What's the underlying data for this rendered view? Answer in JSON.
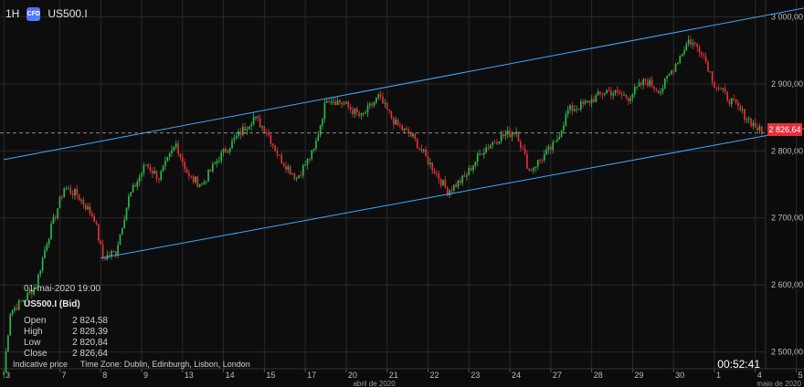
{
  "header": {
    "timeframe": "1H",
    "badge": "CFD",
    "symbol": "US500.I"
  },
  "info_panel": {
    "datetime": "01-mai-2020 19:00",
    "symbol_label": "US500.I (Bid)",
    "rows": [
      {
        "label": "Open",
        "value": "2 824,58"
      },
      {
        "label": "High",
        "value": "2 828,39"
      },
      {
        "label": "Low",
        "value": "2 820,84"
      },
      {
        "label": "Close",
        "value": "2 826,64"
      }
    ]
  },
  "footer": {
    "note": "Indicative price",
    "timezone": "Time Zone: Dublin, Edinburgh, Lisbon, London"
  },
  "countdown": "00:52:41",
  "current_price_label": "2 826,64",
  "colors": {
    "up": "#2db84d",
    "down": "#e5303b",
    "channel": "#3fa9ff",
    "grid": "#2a2a2a",
    "price_tag": "#e5303b"
  },
  "chart_data": {
    "type": "candlestick",
    "y_ticks": [
      "3 000,00",
      "2 900,00",
      "2 800,00",
      "2 700,00",
      "2 600,00",
      "2 500,00"
    ],
    "y_tick_values": [
      3000,
      2900,
      2800,
      2700,
      2600,
      2500
    ],
    "ylim": [
      2475,
      3025
    ],
    "x_ticks": [
      "3",
      "7",
      "8",
      "9",
      "13",
      "14",
      "15",
      "17",
      "20",
      "21",
      "22",
      "23",
      "24",
      "27",
      "28",
      "29",
      "30",
      "1",
      "4",
      "5"
    ],
    "x_tick_index": [
      0,
      26,
      45,
      64,
      83,
      102,
      121,
      140,
      159,
      178,
      197,
      216,
      235,
      254,
      273,
      292,
      311,
      330,
      349,
      368
    ],
    "month_labels": [
      "abril de 2020",
      "maio de 2020"
    ],
    "month_label_index": [
      172,
      360
    ],
    "current_price": 2826.64,
    "channel_lines": [
      {
        "from": [
          0,
          2787
        ],
        "to": [
          380,
          3018
        ]
      },
      {
        "from": [
          45,
          2640
        ],
        "to": [
          380,
          2838
        ]
      }
    ],
    "anchors": [
      [
        0,
        2470
      ],
      [
        3,
        2560
      ],
      [
        10,
        2580
      ],
      [
        15,
        2600
      ],
      [
        20,
        2665
      ],
      [
        28,
        2745
      ],
      [
        34,
        2735
      ],
      [
        42,
        2700
      ],
      [
        46,
        2640
      ],
      [
        52,
        2650
      ],
      [
        58,
        2730
      ],
      [
        66,
        2780
      ],
      [
        72,
        2760
      ],
      [
        80,
        2810
      ],
      [
        86,
        2760
      ],
      [
        92,
        2750
      ],
      [
        100,
        2790
      ],
      [
        108,
        2820
      ],
      [
        116,
        2850
      ],
      [
        122,
        2830
      ],
      [
        128,
        2790
      ],
      [
        136,
        2760
      ],
      [
        144,
        2800
      ],
      [
        150,
        2880
      ],
      [
        158,
        2870
      ],
      [
        166,
        2850
      ],
      [
        174,
        2880
      ],
      [
        182,
        2840
      ],
      [
        190,
        2820
      ],
      [
        198,
        2780
      ],
      [
        206,
        2740
      ],
      [
        214,
        2760
      ],
      [
        222,
        2800
      ],
      [
        230,
        2820
      ],
      [
        238,
        2830
      ],
      [
        244,
        2770
      ],
      [
        250,
        2790
      ],
      [
        256,
        2810
      ],
      [
        262,
        2860
      ],
      [
        270,
        2870
      ],
      [
        280,
        2890
      ],
      [
        290,
        2880
      ],
      [
        298,
        2905
      ],
      [
        305,
        2890
      ],
      [
        312,
        2930
      ],
      [
        318,
        2965
      ],
      [
        324,
        2950
      ],
      [
        330,
        2900
      ],
      [
        336,
        2880
      ],
      [
        342,
        2860
      ],
      [
        348,
        2840
      ],
      [
        352,
        2826.64
      ]
    ],
    "candle_count": 353
  }
}
